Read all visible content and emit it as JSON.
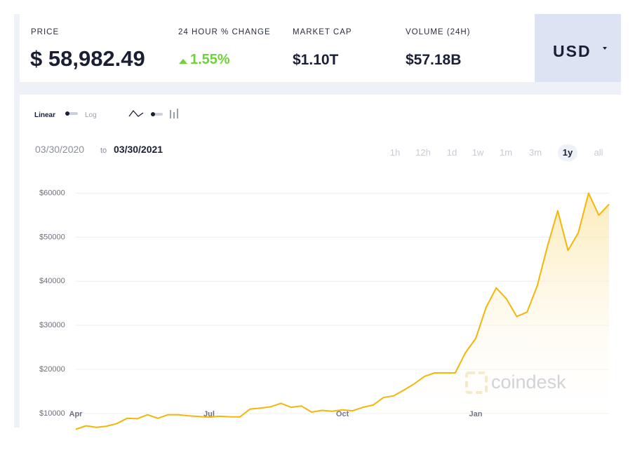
{
  "header": {
    "stats": [
      {
        "label": "PRICE",
        "value": "$ 58,982.49"
      },
      {
        "label": "24 HOUR % CHANGE",
        "value": "1.55%"
      },
      {
        "label": "MARKET CAP",
        "value": "$1.10T"
      },
      {
        "label": "VOLUME (24H)",
        "value": "$57.18B"
      }
    ],
    "currency": "USD"
  },
  "controls": {
    "scale_options": [
      "Linear",
      "Log"
    ],
    "date_from": "03/30/2020",
    "date_sep": "to",
    "date_to": "03/30/2021",
    "ranges": [
      "1h",
      "12h",
      "1d",
      "1w",
      "1m",
      "3m",
      "1y",
      "all"
    ],
    "active_range": "1y"
  },
  "watermark": "coindesk",
  "chart_data": {
    "type": "line",
    "categories": [
      "Apr",
      null,
      null,
      null,
      null,
      null,
      null,
      null,
      null,
      null,
      null,
      null,
      null,
      "Jul",
      null,
      null,
      null,
      null,
      null,
      null,
      null,
      null,
      null,
      null,
      null,
      null,
      "Oct",
      null,
      null,
      null,
      null,
      null,
      null,
      null,
      null,
      null,
      null,
      null,
      null,
      "Jan",
      null,
      null,
      null,
      null,
      null,
      null,
      null,
      null,
      null,
      null,
      null,
      null,
      null
    ],
    "series": [
      {
        "color": "#f5b60a",
        "values": [
          6400,
          7200,
          6850,
          7100,
          7700,
          8900,
          8800,
          9700,
          8900,
          9700,
          9700,
          9450,
          9300,
          9150,
          9350,
          9250,
          9200,
          11000,
          11200,
          11500,
          12300,
          11400,
          11700,
          10300,
          10700,
          10500,
          10800,
          10600,
          11400,
          11900,
          13600,
          14000,
          15300,
          16700,
          18400,
          19200,
          19200,
          19200,
          23800,
          27000,
          34000,
          38500,
          36000,
          32000,
          33000,
          39000,
          48000,
          56000,
          47000,
          51000,
          60000,
          55000,
          57500
        ]
      }
    ],
    "ylim": [
      6000,
      62000
    ],
    "yticks": [
      {
        "value": 10000,
        "label": "$10000"
      },
      {
        "value": 20000,
        "label": "$20000"
      },
      {
        "value": 30000,
        "label": "$30000"
      },
      {
        "value": 40000,
        "label": "$40000"
      },
      {
        "value": 50000,
        "label": "$50000"
      },
      {
        "value": 60000,
        "label": "$60000"
      }
    ],
    "grid": true
  }
}
